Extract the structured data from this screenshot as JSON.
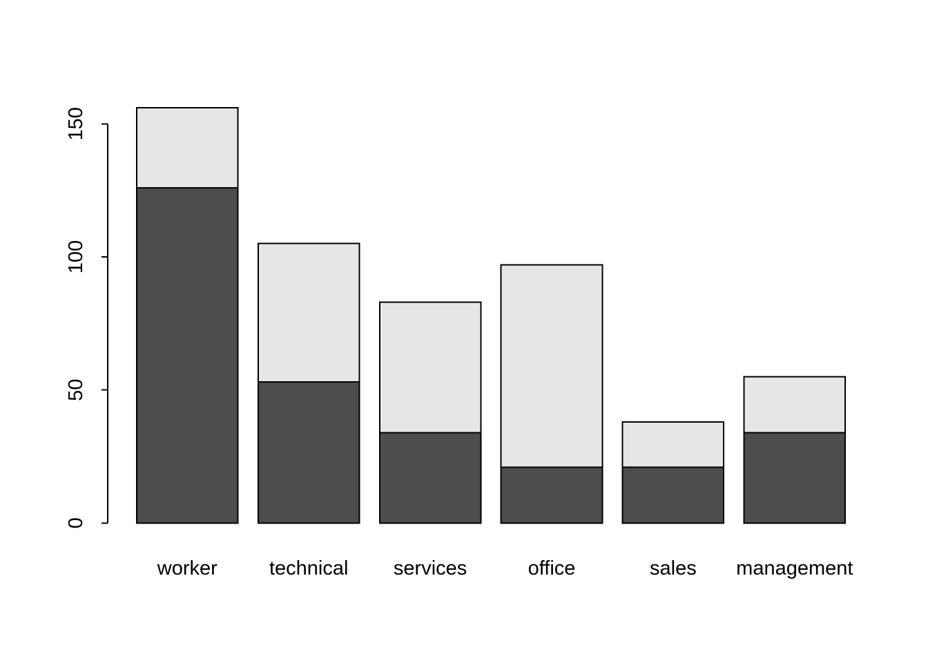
{
  "chart_data": {
    "type": "bar",
    "stacked": true,
    "orientation": "vertical",
    "categories": [
      "worker",
      "technical",
      "services",
      "office",
      "sales",
      "management"
    ],
    "series": [
      {
        "name": "dark",
        "color": "#4D4D4D",
        "values": [
          126,
          53,
          34,
          21,
          21,
          34
        ]
      },
      {
        "name": "light",
        "color": "#E6E6E6",
        "values": [
          30,
          52,
          49,
          76,
          17,
          21
        ]
      }
    ],
    "yticks": [
      0,
      50,
      100,
      150
    ],
    "ytick_labels": [
      "0",
      "50",
      "100",
      "150"
    ],
    "ylim": [
      0,
      160
    ],
    "grid": false,
    "legend": "none",
    "bar_border_color": "#000000",
    "axis_color": "#000000",
    "background_color": "#FFFFFF"
  }
}
